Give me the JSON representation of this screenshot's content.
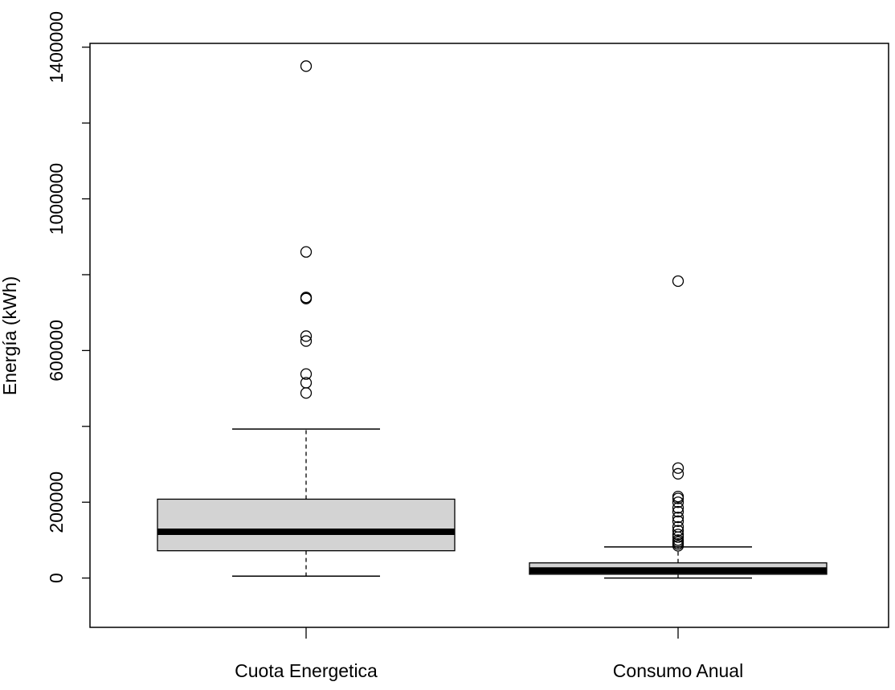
{
  "chart_data": {
    "type": "boxplot",
    "ylabel": "Energía (kWh)",
    "ylim": [
      -130000,
      1410000
    ],
    "yticks": [
      0,
      200000,
      600000,
      1000000,
      1400000
    ],
    "ytick_labels": [
      "0",
      "200000",
      "600000",
      "1000000",
      "1400000"
    ],
    "ytick_minor": [
      400000,
      800000,
      1200000
    ],
    "categories": [
      "Cuota Energetica",
      "Consumo Anual"
    ],
    "boxes": [
      {
        "category": "Cuota Energetica",
        "whisker_low": 5000,
        "q1": 72000,
        "median": 122000,
        "q3": 208000,
        "whisker_high": 393000,
        "outliers": [
          1350000,
          860000,
          740000,
          737000,
          638000,
          625000,
          538000,
          515000,
          488000
        ]
      },
      {
        "category": "Consumo Anual",
        "whisker_low": 0,
        "q1": 10000,
        "median": 20000,
        "q3": 40000,
        "whisker_high": 82000,
        "outliers": [
          783000,
          290000,
          275000,
          215000,
          210000,
          200000,
          185000,
          175000,
          160000,
          150000,
          135000,
          125000,
          115000,
          108000,
          100000,
          95000,
          90000,
          85000
        ]
      }
    ],
    "box_fill": "#d3d3d3",
    "grid": false,
    "legend": "none"
  }
}
